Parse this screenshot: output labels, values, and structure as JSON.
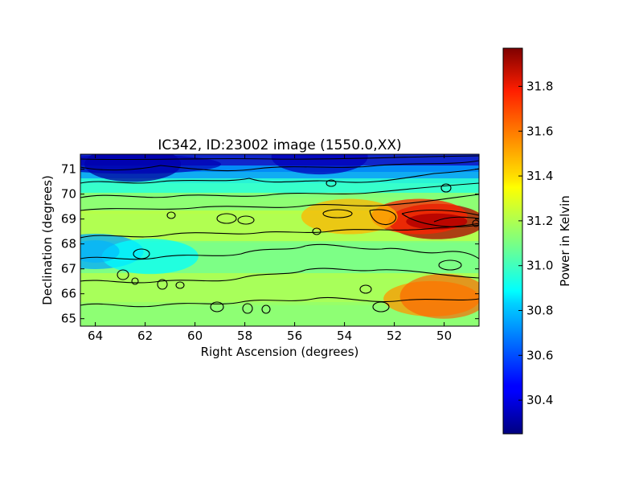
{
  "chart_data": {
    "type": "heatmap",
    "title": "IC342, ID:23002 image (1550.0,XX)",
    "xlabel": "Right Ascension (degrees)",
    "ylabel": "Declination (degrees)",
    "xlim": [
      64.6,
      48.6
    ],
    "ylim": [
      64.7,
      71.6
    ],
    "x_ticks": [
      64,
      62,
      60,
      58,
      56,
      54,
      52,
      50
    ],
    "y_ticks": [
      65,
      66,
      67,
      68,
      69,
      70,
      71
    ],
    "colorbar": {
      "label": "Power in Kelvin",
      "range": [
        30.25,
        31.97
      ],
      "ticks": [
        30.4,
        30.6,
        30.8,
        31.0,
        31.2,
        31.4,
        31.6,
        31.8
      ],
      "colormap": "jet"
    },
    "contours": true,
    "hot_spots": [
      {
        "ra": 50.3,
        "dec": 68.9,
        "kelvin": 31.9
      },
      {
        "ra": 51.0,
        "dec": 69.1,
        "kelvin": 31.7
      },
      {
        "ra": 50.5,
        "dec": 65.8,
        "kelvin": 31.5
      },
      {
        "ra": 53.8,
        "dec": 69.1,
        "kelvin": 31.45
      }
    ],
    "cold_spots": [
      {
        "ra": 62.5,
        "dec": 71.2,
        "kelvin": 30.3
      },
      {
        "ra": 55.0,
        "dec": 71.5,
        "kelvin": 30.35
      },
      {
        "ra": 64.0,
        "dec": 67.7,
        "kelvin": 30.75
      },
      {
        "ra": 61.8,
        "dec": 67.5,
        "kelvin": 30.9
      }
    ]
  }
}
